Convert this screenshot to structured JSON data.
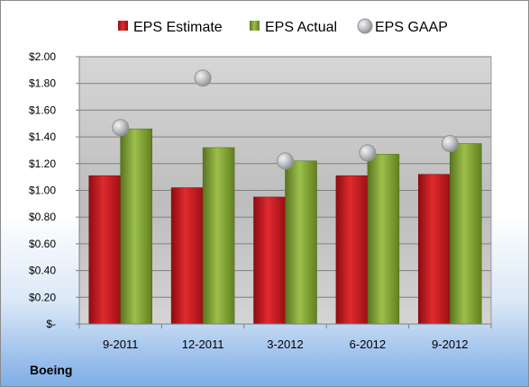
{
  "company_label": "Boeing",
  "chart_data": {
    "type": "bar",
    "categories": [
      "9-2011",
      "12-2011",
      "3-2012",
      "6-2012",
      "9-2012"
    ],
    "series": [
      {
        "name": "EPS Estimate",
        "kind": "bar",
        "color": "#c0161b",
        "values": [
          1.11,
          1.02,
          0.95,
          1.11,
          1.12
        ]
      },
      {
        "name": "EPS Actual",
        "kind": "bar",
        "color": "#7a9a2e",
        "values": [
          1.46,
          1.32,
          1.22,
          1.27,
          1.35
        ]
      },
      {
        "name": "EPS GAAP",
        "kind": "marker",
        "color": "#b0b4b8",
        "values": [
          1.47,
          1.84,
          1.22,
          1.28,
          1.35
        ]
      }
    ],
    "ylim": [
      0,
      2.0
    ],
    "yticks": [
      0,
      0.2,
      0.4,
      0.6,
      0.8,
      1.0,
      1.2,
      1.4,
      1.6,
      1.8,
      2.0
    ],
    "ytick_labels": [
      "$-",
      "$0.20",
      "$0.40",
      "$0.60",
      "$0.80",
      "$1.00",
      "$1.20",
      "$1.40",
      "$1.60",
      "$1.80",
      "$2.00"
    ],
    "grid": true,
    "legend_position": "top"
  }
}
